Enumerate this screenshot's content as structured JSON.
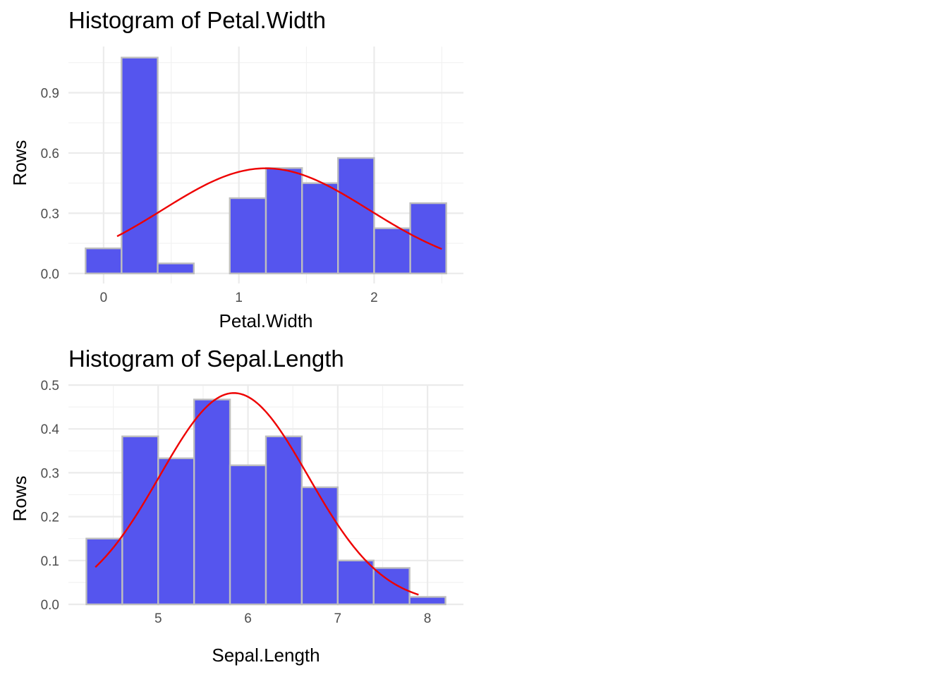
{
  "colors": {
    "bar_fill": "#5555EE",
    "bar_stroke": "#BEBEBE",
    "curve": "#EE0000"
  },
  "chart_data": [
    {
      "type": "bar",
      "title": "Histogram of Petal.Width",
      "xlabel": "Petal.Width",
      "ylabel": "Rows",
      "grid": true,
      "bin_width": 0.267,
      "bins": [
        {
          "x0": -0.133,
          "x1": 0.133,
          "value": 0.125
        },
        {
          "x0": 0.133,
          "x1": 0.4,
          "value": 1.075
        },
        {
          "x0": 0.4,
          "x1": 0.667,
          "value": 0.05
        },
        {
          "x0": 0.667,
          "x1": 0.933,
          "value": 0.0
        },
        {
          "x0": 0.933,
          "x1": 1.2,
          "value": 0.375
        },
        {
          "x0": 1.2,
          "x1": 1.467,
          "value": 0.525
        },
        {
          "x0": 1.467,
          "x1": 1.733,
          "value": 0.45
        },
        {
          "x0": 1.733,
          "x1": 2.0,
          "value": 0.575
        },
        {
          "x0": 2.0,
          "x1": 2.267,
          "value": 0.225
        },
        {
          "x0": 2.267,
          "x1": 2.533,
          "value": 0.35
        }
      ],
      "density_curve": {
        "mean": 1.199,
        "sd": 0.762,
        "from": 0.1,
        "to": 2.5
      },
      "xlim": [
        -0.26,
        2.66
      ],
      "ylim": [
        -0.05,
        1.13
      ],
      "x_ticks": [
        0,
        1,
        2
      ],
      "x_minor_ticks": [
        -0.5,
        0.5,
        1.5,
        2.5
      ],
      "y_ticks": [
        0.0,
        0.3,
        0.6,
        0.9
      ],
      "y_minor_ticks": [
        0.15,
        0.45,
        0.75,
        1.05
      ],
      "x_tick_labels": [
        "0",
        "1",
        "2"
      ],
      "y_tick_labels": [
        "0.0",
        "0.3",
        "0.6",
        "0.9"
      ]
    },
    {
      "type": "bar",
      "title": "Histogram of Sepal.Length",
      "xlabel": "Sepal.Length",
      "ylabel": "Rows",
      "grid": true,
      "bin_width": 0.4,
      "bins": [
        {
          "x0": 4.2,
          "x1": 4.6,
          "value": 0.15
        },
        {
          "x0": 4.6,
          "x1": 5.0,
          "value": 0.383
        },
        {
          "x0": 5.0,
          "x1": 5.4,
          "value": 0.333
        },
        {
          "x0": 5.4,
          "x1": 5.8,
          "value": 0.467
        },
        {
          "x0": 5.8,
          "x1": 6.2,
          "value": 0.317
        },
        {
          "x0": 6.2,
          "x1": 6.6,
          "value": 0.383
        },
        {
          "x0": 6.6,
          "x1": 7.0,
          "value": 0.267
        },
        {
          "x0": 7.0,
          "x1": 7.4,
          "value": 0.1
        },
        {
          "x0": 7.4,
          "x1": 7.8,
          "value": 0.083
        },
        {
          "x0": 7.8,
          "x1": 8.2,
          "value": 0.017
        }
      ],
      "density_curve": {
        "mean": 5.843,
        "sd": 0.828,
        "from": 4.3,
        "to": 7.9
      },
      "xlim": [
        4.0,
        8.4
      ],
      "ylim": [
        -0.0,
        0.5
      ],
      "x_ticks": [
        5,
        6,
        7,
        8
      ],
      "x_minor_ticks": [
        4.5,
        5.5,
        6.5,
        7.5
      ],
      "y_ticks": [
        0.0,
        0.1,
        0.2,
        0.3,
        0.4,
        0.5
      ],
      "y_minor_ticks": [
        0.05,
        0.15,
        0.25,
        0.35,
        0.45
      ],
      "x_tick_labels": [
        "5",
        "6",
        "7",
        "8"
      ],
      "y_tick_labels": [
        "0.0",
        "0.1",
        "0.2",
        "0.3",
        "0.4",
        "0.5"
      ]
    }
  ]
}
